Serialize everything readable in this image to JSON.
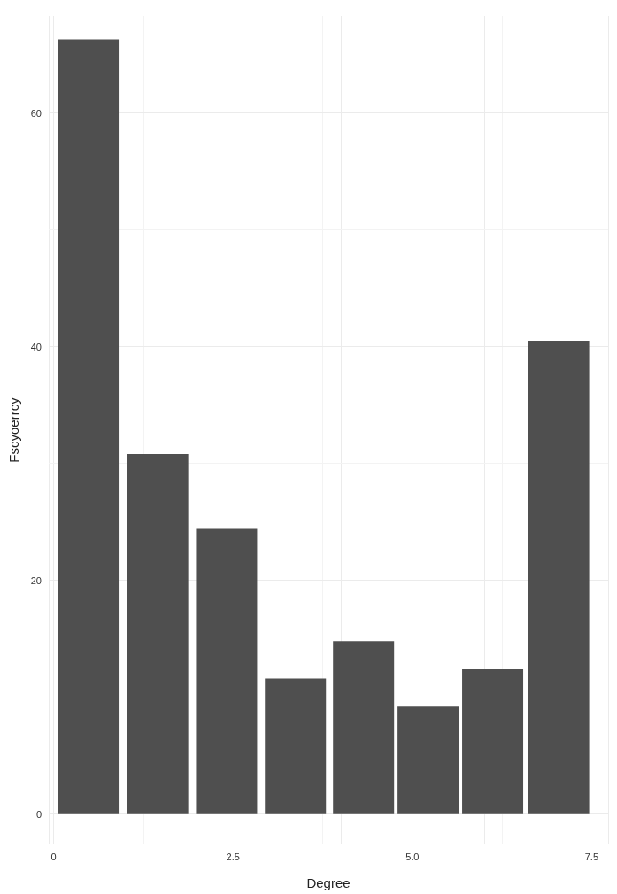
{
  "chart_data": {
    "type": "bar",
    "xlabel": "Degree",
    "ylabel": "Fscyoerrcy",
    "x": [
      0.48,
      1.45,
      2.41,
      3.37,
      4.32,
      5.22,
      6.12,
      7.04
    ],
    "values": [
      66.3,
      30.8,
      24.4,
      11.6,
      14.8,
      9.2,
      12.4,
      40.5
    ],
    "color": "#4f4f4f",
    "xlim": [
      -0.07,
      7.73
    ],
    "xticks": [
      0,
      2.5,
      {
        "value": 5,
        "label": "5.0"
      },
      7.5
    ],
    "ylim": [
      -2.6,
      68.3
    ],
    "yticks": [
      0,
      20,
      40,
      60
    ],
    "grid": true
  }
}
